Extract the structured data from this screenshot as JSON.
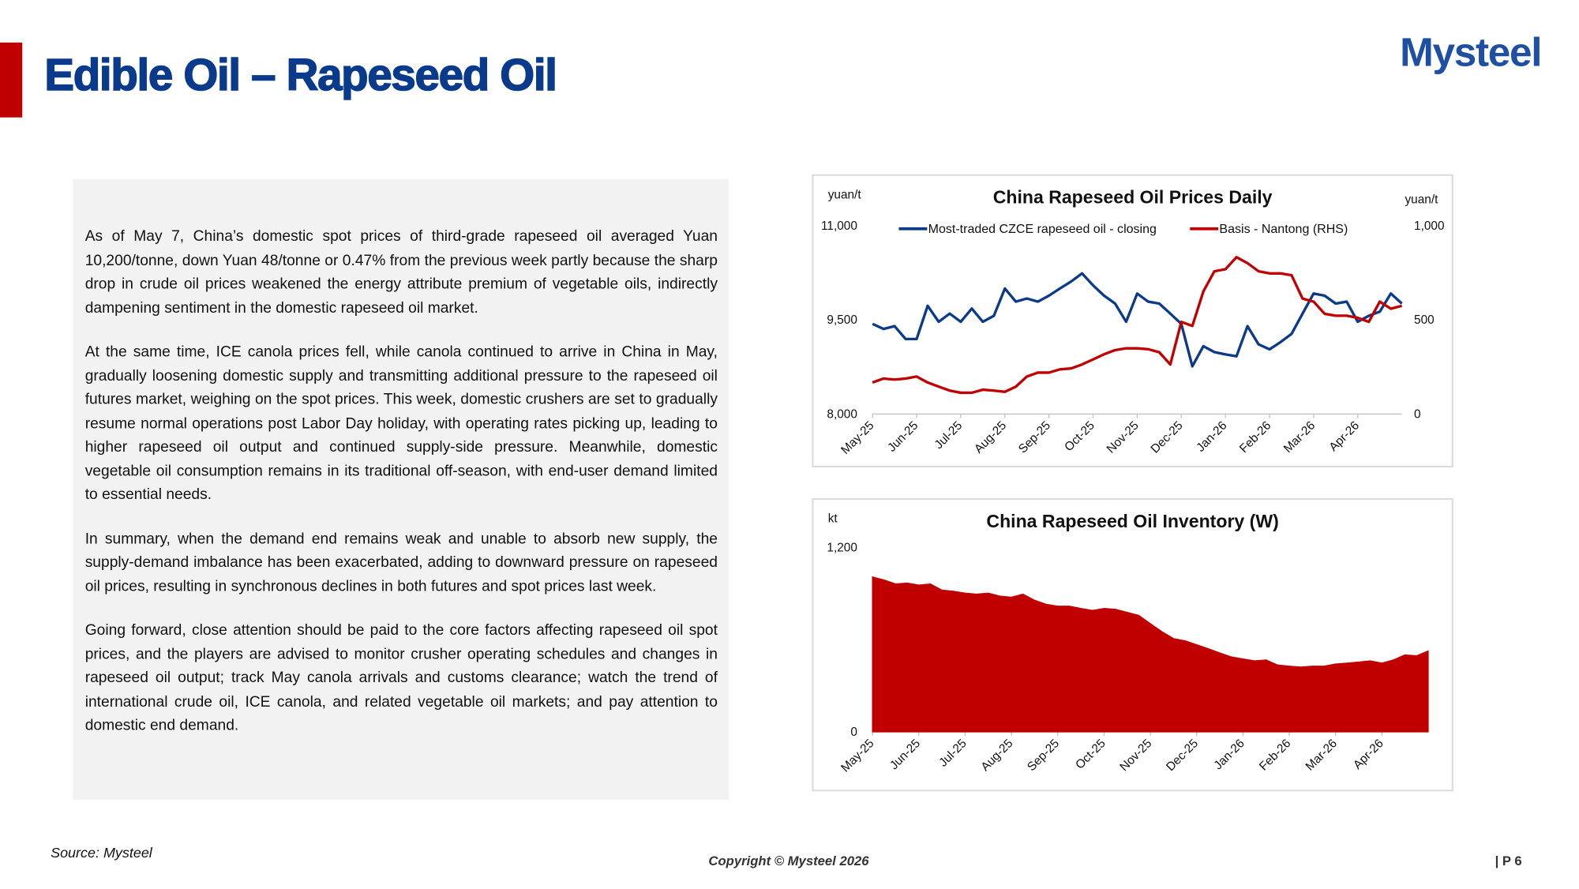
{
  "header": {
    "title": "Edible Oil – Rapeseed Oil",
    "logo": "Mysteel"
  },
  "body": {
    "paragraphs": [
      "As of May 7, China’s domestic spot prices of third-grade rapeseed oil averaged Yuan 10,200/tonne, down Yuan 48/tonne or 0.47% from the previous week partly because the sharp drop in crude oil prices weakened the energy attribute premium of vegetable oils, indirectly dampening sentiment in the domestic rapeseed oil market.",
      "At the same time, ICE canola prices fell, while canola continued to arrive in China in May, gradually loosening domestic supply and transmitting additional pressure to the rapeseed oil futures market, weighing on the spot prices. This week, domestic crushers are set to gradually resume normal operations post Labor Day holiday, with operating rates picking up, leading to higher rapeseed oil output and continued supply-side pressure. Meanwhile, domestic vegetable oil consumption remains in its traditional off-season, with end-user demand limited to essential needs.",
      "In summary, when the demand end remains weak and unable to absorb new supply, the supply-demand imbalance has been exacerbated, adding to downward pressure on rapeseed oil prices, resulting in synchronous declines in both futures and spot prices last week.",
      "Going forward, close attention should be paid to the core factors affecting rapeseed oil spot prices, and the players are advised to monitor crusher operating schedules and changes in rapeseed oil output; track May canola arrivals and customs clearance; watch the trend of international crude oil, ICE canola, and related vegetable oil markets; and pay attention to domestic end demand."
    ]
  },
  "footer": {
    "source": "Source: Mysteel",
    "copyright": "Copyright © Mysteel 2026",
    "page": "| P 6"
  },
  "chart_data": [
    {
      "type": "line",
      "title": "China Rapeseed Oil Prices Daily",
      "y_label": "yuan/t",
      "y2_label": "yuan/t",
      "legend": "top",
      "categories": [
        "May-25",
        null,
        null,
        null,
        "Jun-25",
        null,
        null,
        null,
        "Jul-25",
        null,
        null,
        null,
        "Aug-25",
        null,
        null,
        null,
        "Sep-25",
        null,
        null,
        null,
        "Oct-25",
        null,
        null,
        null,
        "Nov-25",
        null,
        null,
        null,
        "Dec-25",
        null,
        null,
        null,
        "Jan-26",
        null,
        null,
        null,
        "Feb-26",
        null,
        null,
        null,
        "Mar-26",
        null,
        null,
        null,
        "Apr-26",
        null,
        null,
        null,
        null
      ],
      "series": [
        {
          "name": "Most-traded CZCE rapeseed oil - closing",
          "color": "#0b3a8a",
          "values": [
            9435,
            9355,
            9400,
            9195,
            9195,
            9725,
            9470,
            9600,
            9470,
            9680,
            9470,
            9565,
            10000,
            9790,
            9840,
            9790,
            9885,
            10000,
            10110,
            10240,
            10050,
            9885,
            9760,
            9470,
            9920,
            9790,
            9760,
            9600,
            9435,
            8760,
            9080,
            8985,
            8950,
            8920,
            9400,
            9110,
            9030,
            9145,
            9275,
            9600,
            9920,
            9885,
            9760,
            9790,
            9470,
            9565,
            9630,
            9920,
            9760
          ]
        },
        {
          "name": "Basis - Nantong (RHS)",
          "color": "#c00000",
          "axis": "y2",
          "values": [
            167,
            188,
            183,
            188,
            199,
            167,
            145,
            124,
            113,
            113,
            129,
            124,
            118,
            145,
            199,
            220,
            220,
            237,
            242,
            263,
            290,
            317,
            339,
            349,
            349,
            344,
            328,
            263,
            489,
            468,
            651,
            758,
            769,
            833,
            801,
            758,
            747,
            747,
            737,
            613,
            597,
            532,
            522,
            522,
            511,
            489,
            597,
            559,
            575
          ]
        }
      ],
      "ylim": [
        8000,
        11000
      ],
      "yticks": [
        {
          "value": 8000,
          "label": "8,000"
        },
        {
          "value": 9500,
          "label": "9,500"
        },
        {
          "value": 11000,
          "label": "11,000"
        }
      ],
      "y2lim": [
        0,
        1000
      ],
      "y2ticks": [
        0,
        500,
        {
          "value": 1000,
          "label": "1,000"
        }
      ],
      "grid": false
    },
    {
      "type": "area",
      "title": "China Rapeseed Oil Inventory (W)",
      "y_label": "kt",
      "color": "#c00000",
      "categories": [
        "May-25",
        null,
        null,
        null,
        "Jun-25",
        null,
        null,
        null,
        "Jul-25",
        null,
        null,
        null,
        "Aug-25",
        null,
        null,
        null,
        "Sep-25",
        null,
        null,
        null,
        "Oct-25",
        null,
        null,
        null,
        "Nov-25",
        null,
        null,
        null,
        "Dec-25",
        null,
        null,
        null,
        "Jan-26",
        null,
        null,
        null,
        "Feb-26",
        null,
        null,
        null,
        "Mar-26",
        null,
        null,
        null,
        "Apr-26",
        null,
        null,
        null,
        null
      ],
      "values": [
        1009,
        989,
        963,
        969,
        956,
        963,
        923,
        916,
        903,
        897,
        903,
        884,
        877,
        897,
        857,
        831,
        818,
        818,
        804,
        791,
        804,
        798,
        778,
        758,
        705,
        653,
        607,
        593,
        567,
        541,
        514,
        488,
        475,
        462,
        468,
        435,
        428,
        422,
        428,
        428,
        442,
        448,
        455,
        462,
        448,
        468,
        501,
        495,
        527
      ],
      "ylim": [
        0,
        1200
      ],
      "yticks": [
        0,
        {
          "value": 1200,
          "label": "1,200"
        }
      ],
      "grid": false
    }
  ]
}
